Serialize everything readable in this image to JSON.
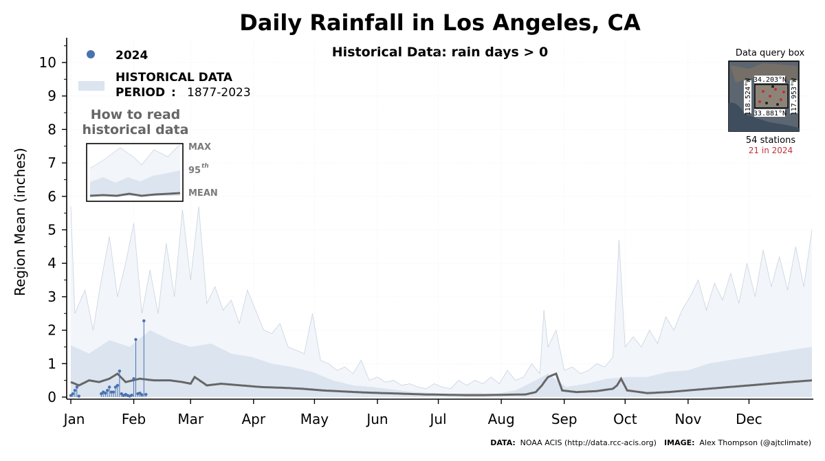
{
  "chart_data": {
    "type": "line",
    "title": "Daily Rainfall in Los Angeles, CA",
    "subtitle": "Historical Data: rain days > 0",
    "ylabel": "Region Mean (inches)",
    "xlabel": "",
    "ylim": [
      0,
      10.7
    ],
    "yticks": [
      0,
      1,
      2,
      3,
      4,
      5,
      6,
      7,
      8,
      9,
      10
    ],
    "months": [
      "Jan",
      "Feb",
      "Mar",
      "Apr",
      "May",
      "Jun",
      "Jul",
      "Aug",
      "Sep",
      "Oct",
      "Nov",
      "Dec"
    ],
    "legend": {
      "series_2024": "2024",
      "historical_line1": "HISTORICAL DATA",
      "historical_line2_bold": "PERIOD",
      "historical_period": "1877-2023"
    },
    "howto": {
      "title_line1": "How to read",
      "title_line2": "historical data",
      "label_max": "MAX",
      "label_95": "95",
      "label_95_sup": "th",
      "label_mean": "MEAN"
    },
    "query_box": {
      "title": "Data query box",
      "north": "34.203°N",
      "south": "33.881°N",
      "west": "118.524°W",
      "east": "117.953°W",
      "stations": "54 stations",
      "stations_2024": "21 in 2024"
    },
    "credits": {
      "data_label": "DATA",
      "data_text": "NOAA ACIS (http://data.rcc-acis.org)",
      "image_label": "IMAGE",
      "image_text": "Alex Thompson (@ajtclimate)"
    },
    "series_2024": {
      "name": "2024",
      "color": "#4a72b0",
      "days": [
        1,
        2,
        3,
        4,
        5,
        16,
        17,
        18,
        19,
        20,
        21,
        22,
        23,
        24,
        25,
        26,
        27,
        28,
        29,
        30,
        31,
        32,
        33,
        34,
        35,
        36,
        37,
        38
      ],
      "values": [
        0.05,
        0.1,
        0.2,
        0.3,
        0.03,
        0.1,
        0.15,
        0.12,
        0.2,
        0.3,
        0.15,
        0.15,
        0.3,
        0.35,
        0.78,
        0.1,
        0.05,
        0.08,
        0.05,
        0.03,
        0.06,
        0.55,
        1.72,
        0.1,
        0.12,
        0.07,
        2.28,
        0.08
      ]
    },
    "historical_mean": {
      "color": "#666666",
      "anchors": [
        [
          1,
          0.45
        ],
        [
          5,
          0.35
        ],
        [
          10,
          0.5
        ],
        [
          15,
          0.45
        ],
        [
          20,
          0.55
        ],
        [
          24,
          0.7
        ],
        [
          28,
          0.45
        ],
        [
          35,
          0.55
        ],
        [
          42,
          0.5
        ],
        [
          50,
          0.5
        ],
        [
          56,
          0.45
        ],
        [
          60,
          0.4
        ],
        [
          62,
          0.6
        ],
        [
          68,
          0.35
        ],
        [
          75,
          0.4
        ],
        [
          85,
          0.35
        ],
        [
          95,
          0.3
        ],
        [
          105,
          0.28
        ],
        [
          115,
          0.25
        ],
        [
          125,
          0.2
        ],
        [
          135,
          0.17
        ],
        [
          145,
          0.14
        ],
        [
          155,
          0.12
        ],
        [
          165,
          0.1
        ],
        [
          175,
          0.08
        ],
        [
          185,
          0.07
        ],
        [
          195,
          0.06
        ],
        [
          205,
          0.06
        ],
        [
          215,
          0.07
        ],
        [
          225,
          0.08
        ],
        [
          230,
          0.15
        ],
        [
          233,
          0.35
        ],
        [
          236,
          0.6
        ],
        [
          240,
          0.7
        ],
        [
          243,
          0.2
        ],
        [
          250,
          0.15
        ],
        [
          260,
          0.18
        ],
        [
          268,
          0.25
        ],
        [
          270,
          0.35
        ],
        [
          272,
          0.55
        ],
        [
          275,
          0.2
        ],
        [
          285,
          0.12
        ],
        [
          295,
          0.15
        ],
        [
          305,
          0.2
        ],
        [
          315,
          0.25
        ],
        [
          325,
          0.3
        ],
        [
          335,
          0.35
        ],
        [
          345,
          0.4
        ],
        [
          355,
          0.45
        ],
        [
          366,
          0.5
        ]
      ]
    },
    "historical_p95": {
      "color": "#dbe4ef",
      "anchors": [
        [
          1,
          1.55
        ],
        [
          10,
          1.3
        ],
        [
          20,
          1.7
        ],
        [
          30,
          1.5
        ],
        [
          40,
          2.0
        ],
        [
          50,
          1.7
        ],
        [
          60,
          1.5
        ],
        [
          70,
          1.6
        ],
        [
          80,
          1.3
        ],
        [
          90,
          1.2
        ],
        [
          100,
          1.0
        ],
        [
          110,
          0.9
        ],
        [
          120,
          0.75
        ],
        [
          130,
          0.5
        ],
        [
          140,
          0.35
        ],
        [
          150,
          0.3
        ],
        [
          160,
          0.22
        ],
        [
          170,
          0.15
        ],
        [
          180,
          0.12
        ],
        [
          190,
          0.1
        ],
        [
          200,
          0.12
        ],
        [
          210,
          0.1
        ],
        [
          220,
          0.2
        ],
        [
          230,
          0.5
        ],
        [
          236,
          0.7
        ],
        [
          245,
          0.3
        ],
        [
          255,
          0.4
        ],
        [
          265,
          0.55
        ],
        [
          275,
          0.6
        ],
        [
          285,
          0.6
        ],
        [
          295,
          0.75
        ],
        [
          305,
          0.8
        ],
        [
          315,
          1.0
        ],
        [
          325,
          1.1
        ],
        [
          335,
          1.2
        ],
        [
          345,
          1.3
        ],
        [
          355,
          1.4
        ],
        [
          366,
          1.5
        ]
      ]
    },
    "historical_max": {
      "color": "#c9d3e0",
      "anchors": [
        [
          1,
          5.7
        ],
        [
          3,
          2.5
        ],
        [
          8,
          3.2
        ],
        [
          12,
          2.0
        ],
        [
          16,
          3.5
        ],
        [
          20,
          4.8
        ],
        [
          24,
          3.0
        ],
        [
          28,
          4.0
        ],
        [
          32,
          5.2
        ],
        [
          36,
          2.5
        ],
        [
          40,
          3.8
        ],
        [
          44,
          2.5
        ],
        [
          48,
          4.6
        ],
        [
          52,
          3.0
        ],
        [
          56,
          5.6
        ],
        [
          60,
          3.5
        ],
        [
          64,
          5.7
        ],
        [
          68,
          2.8
        ],
        [
          72,
          3.3
        ],
        [
          76,
          2.6
        ],
        [
          80,
          2.9
        ],
        [
          84,
          2.2
        ],
        [
          88,
          3.2
        ],
        [
          92,
          2.6
        ],
        [
          96,
          2.0
        ],
        [
          100,
          1.9
        ],
        [
          104,
          2.2
        ],
        [
          108,
          1.5
        ],
        [
          112,
          1.4
        ],
        [
          116,
          1.3
        ],
        [
          120,
          2.5
        ],
        [
          124,
          1.1
        ],
        [
          128,
          1.0
        ],
        [
          132,
          0.8
        ],
        [
          136,
          0.9
        ],
        [
          140,
          0.7
        ],
        [
          144,
          1.1
        ],
        [
          148,
          0.5
        ],
        [
          152,
          0.6
        ],
        [
          156,
          0.45
        ],
        [
          160,
          0.5
        ],
        [
          164,
          0.35
        ],
        [
          168,
          0.4
        ],
        [
          172,
          0.3
        ],
        [
          176,
          0.25
        ],
        [
          180,
          0.4
        ],
        [
          184,
          0.3
        ],
        [
          188,
          0.25
        ],
        [
          192,
          0.5
        ],
        [
          196,
          0.35
        ],
        [
          200,
          0.5
        ],
        [
          204,
          0.4
        ],
        [
          208,
          0.6
        ],
        [
          212,
          0.4
        ],
        [
          216,
          0.8
        ],
        [
          220,
          0.5
        ],
        [
          224,
          0.6
        ],
        [
          228,
          1.0
        ],
        [
          232,
          0.7
        ],
        [
          234,
          2.6
        ],
        [
          236,
          1.5
        ],
        [
          240,
          2.0
        ],
        [
          244,
          0.8
        ],
        [
          248,
          0.9
        ],
        [
          252,
          0.7
        ],
        [
          256,
          0.8
        ],
        [
          260,
          1.0
        ],
        [
          264,
          0.9
        ],
        [
          268,
          1.2
        ],
        [
          271,
          4.7
        ],
        [
          274,
          1.5
        ],
        [
          278,
          1.8
        ],
        [
          282,
          1.5
        ],
        [
          286,
          2.0
        ],
        [
          290,
          1.6
        ],
        [
          294,
          2.4
        ],
        [
          298,
          2.0
        ],
        [
          302,
          2.6
        ],
        [
          306,
          3.0
        ],
        [
          310,
          3.5
        ],
        [
          314,
          2.6
        ],
        [
          318,
          3.4
        ],
        [
          322,
          2.9
        ],
        [
          326,
          3.7
        ],
        [
          330,
          2.8
        ],
        [
          334,
          4.0
        ],
        [
          338,
          3.0
        ],
        [
          342,
          4.4
        ],
        [
          346,
          3.3
        ],
        [
          350,
          4.2
        ],
        [
          354,
          3.2
        ],
        [
          358,
          4.5
        ],
        [
          362,
          3.3
        ],
        [
          366,
          5.0
        ]
      ]
    }
  }
}
